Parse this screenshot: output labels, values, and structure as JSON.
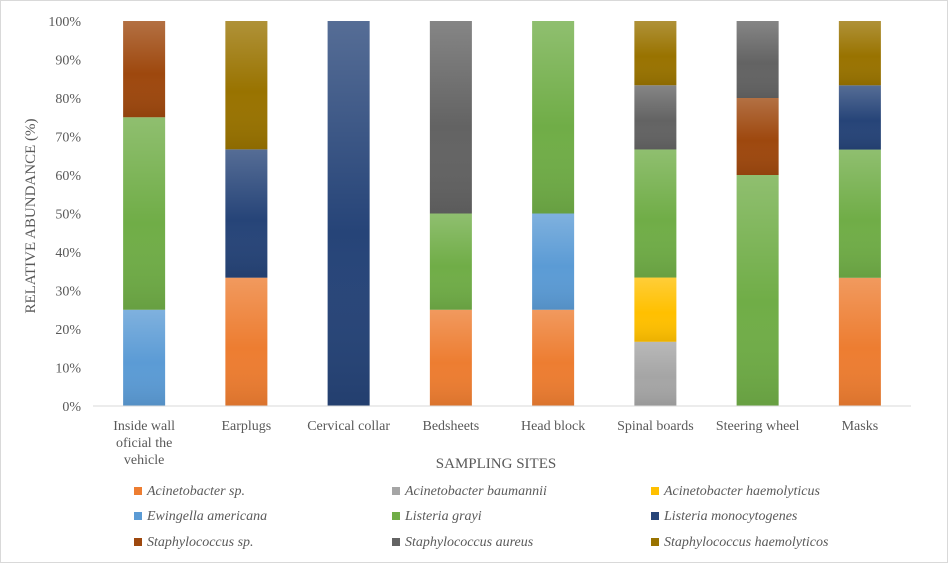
{
  "chart_data": {
    "type": "bar",
    "stacked": true,
    "percent": true,
    "xlabel": "SAMPLING SITES",
    "ylabel": "RELATIVE ABUNDANCE (%)",
    "ylim": [
      0,
      100
    ],
    "yticks": [
      "0%",
      "10%",
      "20%",
      "30%",
      "40%",
      "50%",
      "60%",
      "70%",
      "80%",
      "90%",
      "100%"
    ],
    "categories": [
      [
        "Inside wall",
        "oficial the",
        "vehicle"
      ],
      [
        "Earplugs"
      ],
      [
        "Cervical collar"
      ],
      [
        "Bedsheets"
      ],
      [
        "Head block"
      ],
      [
        "Spinal boards"
      ],
      [
        "Steering wheel"
      ],
      [
        "Masks"
      ]
    ],
    "legend_position": "bottom",
    "grid": false,
    "series": [
      {
        "name": "Acinetobacter sp.",
        "color": "#ED7D31",
        "values": [
          0,
          33.3,
          0,
          25,
          25,
          0,
          0,
          33.3
        ]
      },
      {
        "name": "Acinetobacter baumannii",
        "color": "#A5A5A5",
        "values": [
          0,
          0,
          0,
          0,
          0,
          16.7,
          0,
          0
        ]
      },
      {
        "name": "Acinetobacter haemolyticus",
        "color": "#FFC000",
        "values": [
          0,
          0,
          0,
          0,
          0,
          16.7,
          0,
          0
        ]
      },
      {
        "name": "Ewingella americana",
        "color": "#5B9BD5",
        "values": [
          25,
          0,
          0,
          0,
          25,
          0,
          0,
          0
        ]
      },
      {
        "name": "Listeria grayi",
        "color": "#70AD47",
        "values": [
          50,
          0,
          0,
          25,
          50,
          33.3,
          60,
          33.3
        ]
      },
      {
        "name": "Listeria monocytogenes",
        "color": "#264478",
        "values": [
          0,
          33.3,
          100,
          0,
          0,
          0,
          0,
          16.7
        ]
      },
      {
        "name": "Staphylococcus sp.",
        "color": "#9E480E",
        "values": [
          25,
          0,
          0,
          0,
          0,
          0,
          20,
          0
        ]
      },
      {
        "name": "Staphylococcus aureus",
        "color": "#636363",
        "values": [
          0,
          0,
          0,
          50,
          0,
          16.7,
          20,
          0
        ]
      },
      {
        "name": "Staphylococcus haemolyticos",
        "color": "#997300",
        "values": [
          0,
          33.3,
          0,
          0,
          0,
          16.7,
          0,
          16.7
        ]
      }
    ]
  }
}
